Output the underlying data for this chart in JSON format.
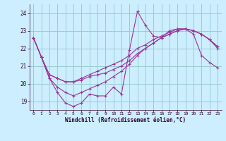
{
  "xlabel": "Windchill (Refroidissement éolien,°C)",
  "bg_color": "#cceeff",
  "grid_color": "#99cccc",
  "line_color": "#993399",
  "xlim": [
    -0.5,
    23.5
  ],
  "ylim": [
    18.5,
    24.5
  ],
  "xticks": [
    0,
    1,
    2,
    3,
    4,
    5,
    6,
    7,
    8,
    9,
    10,
    11,
    12,
    13,
    14,
    15,
    16,
    17,
    18,
    19,
    20,
    21,
    22,
    23
  ],
  "yticks": [
    19,
    20,
    21,
    22,
    23,
    24
  ],
  "line1": [
    22.6,
    21.5,
    20.3,
    19.5,
    18.9,
    18.7,
    18.9,
    19.4,
    19.3,
    19.3,
    19.8,
    19.4,
    21.9,
    24.1,
    23.3,
    22.7,
    22.6,
    23.0,
    23.1,
    23.1,
    22.8,
    21.6,
    21.2,
    20.9
  ],
  "line2": [
    22.6,
    21.5,
    20.5,
    20.3,
    20.1,
    20.1,
    20.2,
    20.4,
    20.5,
    20.6,
    20.8,
    21.0,
    21.3,
    21.7,
    22.0,
    22.3,
    22.6,
    22.8,
    23.0,
    23.1,
    23.0,
    22.8,
    22.5,
    22.1
  ],
  "line3": [
    22.6,
    21.5,
    20.5,
    20.3,
    20.1,
    20.1,
    20.3,
    20.5,
    20.7,
    20.9,
    21.1,
    21.3,
    21.6,
    22.0,
    22.2,
    22.5,
    22.7,
    22.9,
    23.1,
    23.1,
    23.0,
    22.8,
    22.5,
    22.1
  ],
  "line4": [
    22.6,
    21.5,
    20.3,
    19.8,
    19.5,
    19.3,
    19.5,
    19.7,
    19.9,
    20.1,
    20.4,
    20.7,
    21.1,
    21.6,
    22.0,
    22.3,
    22.6,
    22.8,
    23.0,
    23.1,
    23.0,
    22.8,
    22.5,
    22.0
  ]
}
